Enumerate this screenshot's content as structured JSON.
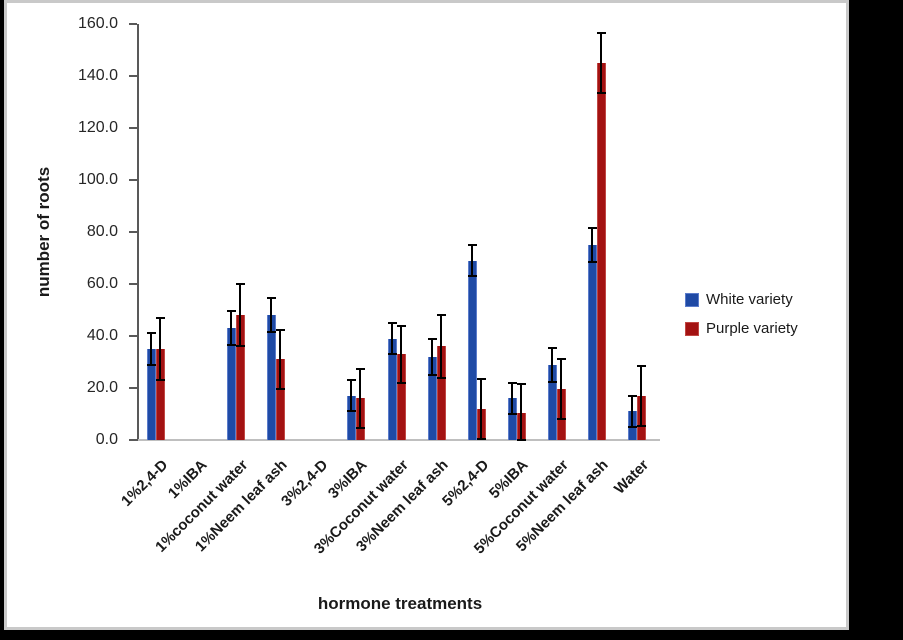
{
  "chart_data": {
    "type": "bar",
    "title": "",
    "xlabel": "hormone treatments",
    "ylabel": "number of roots",
    "ylim": [
      0,
      160
    ],
    "ytick_step": 20,
    "ytick_labels": [
      "160.0",
      "140.0",
      "120.0",
      "100.0",
      "80.0",
      "60.0",
      "40.0",
      "20.0",
      "0.0"
    ],
    "grid": false,
    "legend_position": "right",
    "error_bars": true,
    "categories": [
      "1%2,4-D",
      "1%IBA",
      "1%coconut water",
      "1%Neem leaf ash",
      "3%2,4-D",
      "3%IBA",
      "3%Coconut water",
      "3%Neem leaf ash",
      "5%2,4-D",
      "5%IBA",
      "5%Coconut water",
      "5%Neem leaf ash",
      "Water"
    ],
    "series": [
      {
        "name": "White variety",
        "color": "#1F4AA5",
        "border_color": "#5B7CCB",
        "values": [
          35,
          0,
          43,
          48,
          0,
          17,
          39,
          32,
          69,
          16,
          29,
          75,
          11
        ],
        "errors": [
          6,
          0,
          6.5,
          6.5,
          0,
          6,
          6,
          7,
          6,
          6,
          6.5,
          6.5,
          6
        ]
      },
      {
        "name": "Purple variety",
        "color": "#A31212",
        "border_color": "#C04743",
        "values": [
          35,
          0,
          48,
          31,
          0,
          16,
          33,
          36,
          12,
          10.5,
          19.5,
          145,
          17
        ],
        "errors": [
          12,
          0,
          12,
          11.5,
          0,
          11.5,
          11,
          12,
          11.5,
          11,
          11.5,
          11.5,
          11.5
        ]
      }
    ]
  }
}
